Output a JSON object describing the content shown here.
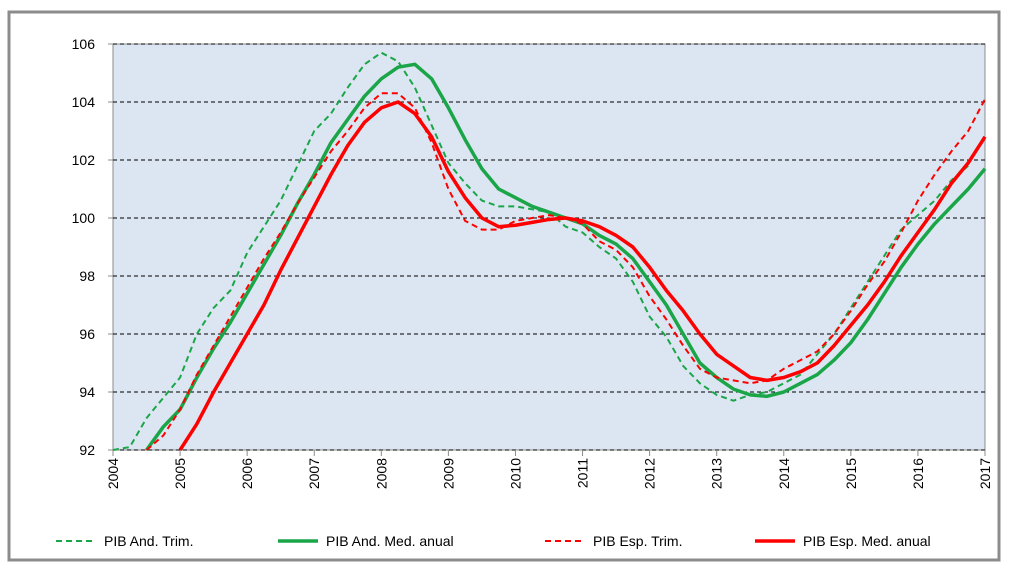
{
  "chart_data": {
    "type": "line",
    "x": [
      2004,
      2004.25,
      2004.5,
      2004.75,
      2005,
      2005.25,
      2005.5,
      2005.75,
      2006,
      2006.25,
      2006.5,
      2006.75,
      2007,
      2007.25,
      2007.5,
      2007.75,
      2008,
      2008.25,
      2008.5,
      2008.75,
      2009,
      2009.25,
      2009.5,
      2009.75,
      2010,
      2010.25,
      2010.5,
      2010.75,
      2011,
      2011.25,
      2011.5,
      2011.75,
      2012,
      2012.25,
      2012.5,
      2012.75,
      2013,
      2013.25,
      2013.5,
      2013.75,
      2014,
      2014.25,
      2014.5,
      2014.75,
      2015,
      2015.25,
      2015.5,
      2015.75,
      2016,
      2016.25,
      2016.5,
      2016.75,
      2017
    ],
    "series": [
      {
        "name": "PIB And. Trim.",
        "color": "#1aa648",
        "dashed": true,
        "values": [
          92.0,
          92.1,
          93.1,
          93.8,
          94.5,
          96.0,
          96.9,
          97.5,
          98.8,
          99.7,
          100.6,
          101.8,
          103.0,
          103.6,
          104.5,
          105.3,
          105.7,
          105.4,
          104.5,
          103.2,
          101.9,
          101.2,
          100.6,
          100.4,
          100.4,
          100.3,
          100.2,
          99.7,
          99.5,
          99.0,
          98.6,
          97.8,
          96.6,
          95.9,
          94.9,
          94.3,
          93.9,
          93.7,
          93.9,
          94.0,
          94.3,
          94.6,
          95.3,
          96.0,
          96.9,
          97.8,
          98.7,
          99.6,
          100.1,
          100.6,
          101.3,
          101.8,
          null
        ]
      },
      {
        "name": "PIB And. Med. anual",
        "color": "#1aa648",
        "dashed": false,
        "values": [
          null,
          null,
          92.0,
          92.8,
          93.4,
          94.5,
          95.5,
          96.4,
          97.4,
          98.4,
          99.4,
          100.5,
          101.5,
          102.6,
          103.4,
          104.2,
          104.8,
          105.2,
          105.3,
          104.8,
          103.8,
          102.7,
          101.7,
          101.0,
          100.7,
          100.4,
          100.2,
          100.0,
          99.8,
          99.4,
          99.1,
          98.6,
          97.8,
          97.0,
          96.0,
          95.0,
          94.5,
          94.1,
          93.9,
          93.85,
          94.0,
          94.3,
          94.6,
          95.1,
          95.7,
          96.5,
          97.4,
          98.3,
          99.1,
          99.8,
          100.4,
          101.0,
          101.7
        ]
      },
      {
        "name": "PIB Esp. Trim.",
        "color": "#ff0000",
        "dashed": true,
        "values": [
          null,
          null,
          92.0,
          92.5,
          93.4,
          94.6,
          95.6,
          96.6,
          97.6,
          98.6,
          99.5,
          100.5,
          101.4,
          102.3,
          103.0,
          103.8,
          104.3,
          104.3,
          103.8,
          102.6,
          101.0,
          99.9,
          99.6,
          99.6,
          99.9,
          100.0,
          100.1,
          100.0,
          99.8,
          99.2,
          98.9,
          98.3,
          97.3,
          96.5,
          95.6,
          94.8,
          94.5,
          94.4,
          94.3,
          94.4,
          94.8,
          95.1,
          95.4,
          96.0,
          96.8,
          97.7,
          98.5,
          99.5,
          100.6,
          101.5,
          102.3,
          103.0,
          104.1
        ]
      },
      {
        "name": "PIB Esp. Med. anual",
        "color": "#ff0000",
        "dashed": false,
        "values": [
          null,
          null,
          null,
          null,
          92.0,
          92.9,
          94.0,
          95.0,
          96.0,
          97.0,
          98.2,
          99.3,
          100.4,
          101.5,
          102.5,
          103.3,
          103.8,
          104.0,
          103.6,
          102.8,
          101.6,
          100.7,
          100.0,
          99.7,
          99.75,
          99.85,
          99.95,
          100.0,
          99.9,
          99.7,
          99.4,
          99.0,
          98.3,
          97.5,
          96.8,
          96.0,
          95.3,
          94.9,
          94.5,
          94.4,
          94.5,
          94.7,
          95.0,
          95.6,
          96.3,
          97.0,
          97.8,
          98.7,
          99.5,
          100.3,
          101.2,
          101.9,
          102.8
        ]
      }
    ],
    "xlim": [
      2004,
      2017
    ],
    "xticks": [
      2004,
      2005,
      2006,
      2007,
      2008,
      2009,
      2010,
      2011,
      2012,
      2013,
      2014,
      2015,
      2016,
      2017
    ],
    "ylim": [
      92,
      106
    ],
    "yticks": [
      92,
      94,
      96,
      98,
      100,
      102,
      104,
      106
    ],
    "grid": true,
    "legend": "bottom"
  }
}
